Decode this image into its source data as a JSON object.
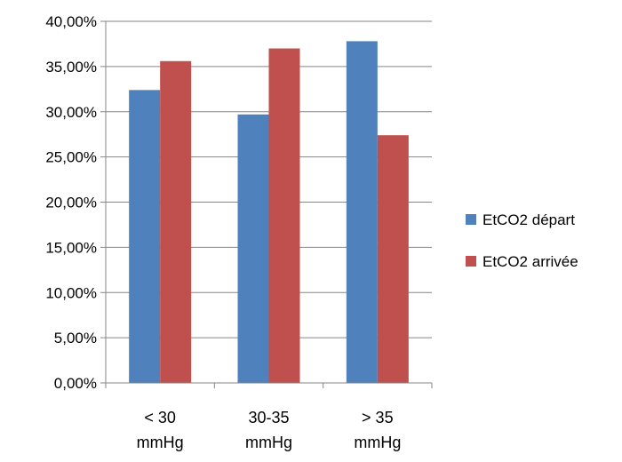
{
  "chart_data": {
    "type": "bar",
    "title": "",
    "xlabel": "",
    "ylabel": "",
    "categories": [
      "< 30 mmHg",
      "30-35 mmHg",
      "> 35 mmHg"
    ],
    "category_lines": [
      [
        "< 30",
        "mmHg"
      ],
      [
        "30-35",
        "mmHg"
      ],
      [
        "> 35",
        "mmHg"
      ]
    ],
    "series": [
      {
        "name": "EtCO2 départ",
        "values": [
          0.324,
          0.297,
          0.378
        ],
        "color": "#4F81BD"
      },
      {
        "name": "EtCO2 arrivée",
        "values": [
          0.356,
          0.37,
          0.274
        ],
        "color": "#C0504D"
      }
    ],
    "ylim": [
      0,
      0.4
    ],
    "y_ticks": [
      0,
      0.05,
      0.1,
      0.15,
      0.2,
      0.25,
      0.3,
      0.35,
      0.4
    ],
    "y_tick_labels": [
      "0,00%",
      "5,00%",
      "10,00%",
      "15,00%",
      "20,00%",
      "25,00%",
      "30,00%",
      "35,00%",
      "40,00%"
    ],
    "grid": true,
    "legend_position": "right",
    "colors": {
      "gridline": "#868686",
      "axis": "#868686"
    }
  }
}
